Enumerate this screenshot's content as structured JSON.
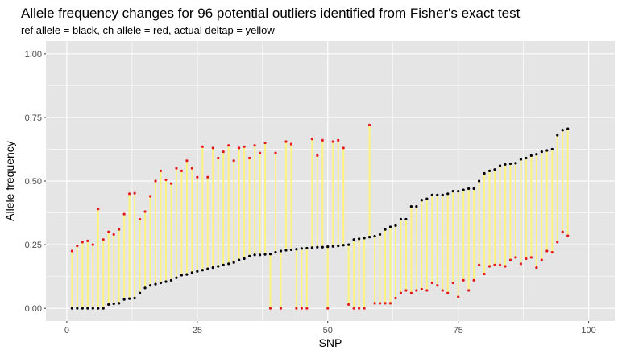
{
  "chart_data": {
    "type": "scatter",
    "title": "Allele frequency changes for 96 potential outliers identified from Fisher's exact test",
    "subtitle": "ref allele = black, ch allele = red, actual deltap = yellow",
    "xlabel": "SNP",
    "ylabel": "Allele frequency",
    "xlim": [
      -4,
      105
    ],
    "ylim": [
      -0.05,
      1.05
    ],
    "x_ticks": [
      0,
      25,
      50,
      75,
      100
    ],
    "x_tick_labels": [
      "0",
      "25",
      "50",
      "75",
      "100"
    ],
    "y_ticks": [
      0,
      0.25,
      0.5,
      0.75,
      1
    ],
    "y_tick_labels": [
      "0.00",
      "0.25",
      "0.50",
      "0.75",
      "1.00"
    ],
    "grid": true,
    "colors": {
      "panel": "#e5e5e5",
      "grid": "#ffffff",
      "ref": "#000000",
      "ch": "#e31a1c",
      "deltap": "#fff380"
    },
    "x": [
      1,
      2,
      3,
      4,
      5,
      6,
      7,
      8,
      9,
      10,
      11,
      12,
      13,
      14,
      15,
      16,
      17,
      18,
      19,
      20,
      21,
      22,
      23,
      24,
      25,
      26,
      27,
      28,
      29,
      30,
      31,
      32,
      33,
      34,
      35,
      36,
      37,
      38,
      39,
      40,
      41,
      42,
      43,
      44,
      45,
      46,
      47,
      48,
      49,
      50,
      51,
      52,
      53,
      54,
      55,
      56,
      57,
      58,
      59,
      60,
      61,
      62,
      63,
      64,
      65,
      66,
      67,
      68,
      69,
      70,
      71,
      72,
      73,
      74,
      75,
      76,
      77,
      78,
      79,
      80,
      81,
      82,
      83,
      84,
      85,
      86,
      87,
      88,
      89,
      90,
      91,
      92,
      93,
      94,
      95,
      96
    ],
    "series": [
      {
        "role": "ref",
        "values": [
          0.0,
          0.0,
          0.0,
          0.0,
          0.0,
          0.0,
          0.0,
          0.015,
          0.018,
          0.02,
          0.035,
          0.038,
          0.04,
          0.06,
          0.08,
          0.09,
          0.095,
          0.1,
          0.105,
          0.11,
          0.12,
          0.13,
          0.133,
          0.14,
          0.145,
          0.15,
          0.155,
          0.16,
          0.165,
          0.17,
          0.175,
          0.18,
          0.19,
          0.195,
          0.205,
          0.21,
          0.21,
          0.212,
          0.213,
          0.22,
          0.225,
          0.228,
          0.23,
          0.232,
          0.235,
          0.236,
          0.238,
          0.24,
          0.24,
          0.242,
          0.243,
          0.245,
          0.248,
          0.25,
          0.27,
          0.273,
          0.276,
          0.28,
          0.283,
          0.29,
          0.31,
          0.32,
          0.325,
          0.35,
          0.35,
          0.4,
          0.4,
          0.425,
          0.43,
          0.445,
          0.445,
          0.445,
          0.45,
          0.46,
          0.46,
          0.465,
          0.47,
          0.47,
          0.5,
          0.53,
          0.54,
          0.545,
          0.56,
          0.565,
          0.568,
          0.57,
          0.585,
          0.59,
          0.6,
          0.605,
          0.615,
          0.62,
          0.625,
          0.68,
          0.7,
          0.705
        ]
      },
      {
        "role": "ch",
        "values": [
          0.225,
          0.245,
          0.26,
          0.265,
          0.25,
          0.39,
          0.27,
          0.3,
          0.29,
          0.31,
          0.37,
          0.45,
          0.452,
          0.35,
          0.38,
          0.44,
          0.5,
          0.54,
          0.505,
          0.49,
          0.55,
          0.54,
          0.58,
          0.55,
          0.515,
          0.635,
          0.515,
          0.63,
          0.59,
          0.615,
          0.64,
          0.58,
          0.63,
          0.635,
          0.59,
          0.64,
          0.61,
          0.65,
          0.0,
          0.61,
          0.0,
          0.655,
          0.645,
          0.0,
          0.0,
          0.0,
          0.665,
          0.6,
          0.66,
          0.0,
          0.655,
          0.66,
          0.63,
          0.015,
          0.0,
          0.0,
          0.0,
          0.72,
          0.02,
          0.02,
          0.02,
          0.02,
          0.04,
          0.06,
          0.07,
          0.06,
          0.07,
          0.075,
          0.07,
          0.1,
          0.09,
          0.07,
          0.06,
          0.1,
          0.045,
          0.11,
          0.07,
          0.11,
          0.17,
          0.135,
          0.165,
          0.17,
          0.17,
          0.165,
          0.19,
          0.2,
          0.175,
          0.195,
          0.2,
          0.16,
          0.19,
          0.225,
          0.22,
          0.26,
          0.3,
          0.285
        ]
      }
    ]
  }
}
